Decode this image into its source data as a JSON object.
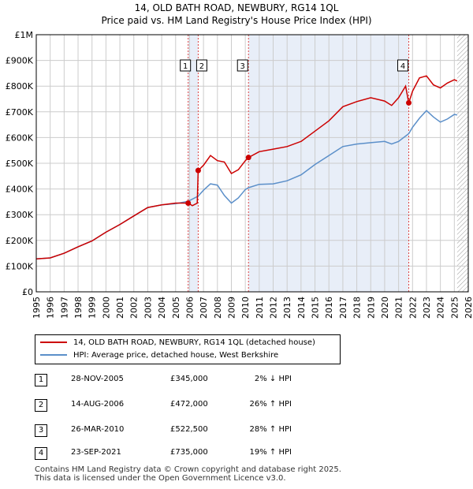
{
  "colors": {
    "red": "#cc0000",
    "blue": "#5b8fc9",
    "shade": "#e8eef8",
    "grid": "#cccccc",
    "vline_red": "#dd4444"
  },
  "chart_data": {
    "type": "line",
    "title": "14, OLD BATH ROAD, NEWBURY, RG14 1QL",
    "subtitle": "Price paid vs. HM Land Registry's House Price Index (HPI)",
    "ylabels": [
      "£0",
      "£100K",
      "£200K",
      "£300K",
      "£400K",
      "£500K",
      "£600K",
      "£700K",
      "£800K",
      "£900K",
      "£1M"
    ],
    "ylim": [
      0,
      1000000
    ],
    "xlim": [
      1995.0,
      2026.0
    ],
    "xticks": [
      "1995",
      "1996",
      "1997",
      "1998",
      "1999",
      "2000",
      "2001",
      "2002",
      "2003",
      "2004",
      "2005",
      "2006",
      "2007",
      "2008",
      "2009",
      "2010",
      "2011",
      "2012",
      "2013",
      "2014",
      "2015",
      "2016",
      "2017",
      "2018",
      "2019",
      "2020",
      "2021",
      "2022",
      "2023",
      "2024",
      "2025",
      "2026"
    ],
    "future_from": 2025.2,
    "shaded_ranges": [
      [
        2005.9,
        2006.62
      ],
      [
        2010.23,
        2021.73
      ]
    ],
    "series": [
      {
        "name": "14, OLD BATH ROAD, NEWBURY, RG14 1QL (detached house)",
        "x": [
          1995.0,
          1996.0,
          1997.0,
          1998.0,
          1999.0,
          2000.0,
          2001.0,
          2002.0,
          2003.0,
          2004.0,
          2005.0,
          2005.9,
          2006.2,
          2006.55,
          2006.62,
          2007.0,
          2007.5,
          2008.0,
          2008.5,
          2009.0,
          2009.5,
          2010.0,
          2010.23,
          2011.0,
          2012.0,
          2013.0,
          2014.0,
          2015.0,
          2016.0,
          2017.0,
          2018.0,
          2019.0,
          2020.0,
          2020.5,
          2021.0,
          2021.5,
          2021.73,
          2022.0,
          2022.5,
          2023.0,
          2023.5,
          2024.0,
          2024.5,
          2025.0,
          2025.2
        ],
        "values": [
          128000,
          132000,
          150000,
          175000,
          198000,
          232000,
          262000,
          295000,
          328000,
          338000,
          345000,
          345000,
          335000,
          345000,
          472000,
          492000,
          530000,
          510000,
          505000,
          460000,
          475000,
          510000,
          522500,
          545000,
          555000,
          565000,
          585000,
          625000,
          665000,
          720000,
          740000,
          755000,
          742000,
          725000,
          755000,
          800000,
          735000,
          780000,
          832000,
          840000,
          805000,
          793000,
          812000,
          825000,
          820000
        ]
      },
      {
        "name": "HPI: Average price, detached house, West Berkshire",
        "x": [
          1995.0,
          1996.0,
          1997.0,
          1998.0,
          1999.0,
          2000.0,
          2001.0,
          2002.0,
          2003.0,
          2004.0,
          2005.0,
          2005.9,
          2006.62,
          2007.0,
          2007.5,
          2008.0,
          2008.5,
          2009.0,
          2009.5,
          2010.0,
          2010.23,
          2011.0,
          2012.0,
          2013.0,
          2014.0,
          2015.0,
          2016.0,
          2017.0,
          2018.0,
          2019.0,
          2020.0,
          2020.5,
          2021.0,
          2021.73,
          2022.0,
          2022.5,
          2023.0,
          2023.5,
          2024.0,
          2024.5,
          2025.0,
          2025.2
        ],
        "values": [
          128000,
          132000,
          150000,
          175000,
          198000,
          232000,
          262000,
          295000,
          328000,
          338000,
          343000,
          352000,
          372000,
          395000,
          420000,
          415000,
          375000,
          345000,
          365000,
          398000,
          405000,
          418000,
          420000,
          432000,
          455000,
          495000,
          530000,
          565000,
          575000,
          580000,
          585000,
          575000,
          585000,
          615000,
          640000,
          675000,
          705000,
          680000,
          660000,
          672000,
          690000,
          688000
        ]
      }
    ],
    "sales": [
      {
        "label": "1",
        "x": 2005.9,
        "value": 345000
      },
      {
        "label": "2",
        "x": 2006.62,
        "value": 472000
      },
      {
        "label": "3",
        "x": 2010.23,
        "value": 522500
      },
      {
        "label": "4",
        "x": 2021.73,
        "value": 735000
      }
    ]
  },
  "legend": {
    "property": "14, OLD BATH ROAD, NEWBURY, RG14 1QL (detached house)",
    "hpi": "HPI: Average price, detached house, West Berkshire"
  },
  "sales_table": [
    {
      "num": "1",
      "date": "28-NOV-2005",
      "price": "£345,000",
      "hpi": "2% ↓ HPI"
    },
    {
      "num": "2",
      "date": "14-AUG-2006",
      "price": "£472,000",
      "hpi": "26% ↑ HPI"
    },
    {
      "num": "3",
      "date": "26-MAR-2010",
      "price": "£522,500",
      "hpi": "28% ↑ HPI"
    },
    {
      "num": "4",
      "date": "23-SEP-2021",
      "price": "£735,000",
      "hpi": "19% ↑ HPI"
    }
  ],
  "footer": {
    "line1": "Contains HM Land Registry data © Crown copyright and database right 2025.",
    "line2": "This data is licensed under the Open Government Licence v3.0."
  }
}
